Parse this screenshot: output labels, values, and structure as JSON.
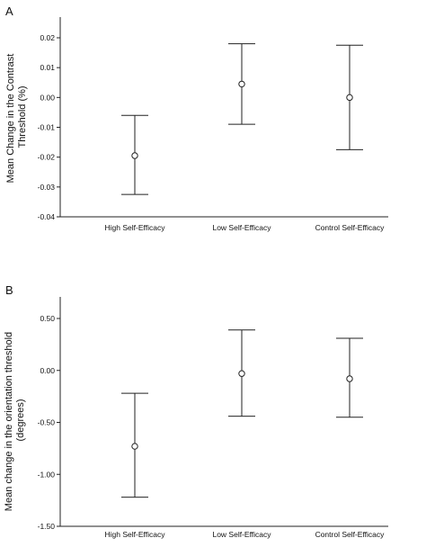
{
  "chart_data": [
    {
      "type": "scatter",
      "panel_label": "A",
      "title": "",
      "xlabel": "",
      "ylabel_lines": [
        "Mean Change in the Contrast",
        "Threshold (%)"
      ],
      "categories": [
        "High Self-Efficacy",
        "Low Self-Efficacy",
        "Control Self-Efficacy"
      ],
      "means": [
        -0.0195,
        0.0045,
        0.0
      ],
      "error_lower": [
        -0.0325,
        -0.009,
        -0.0175
      ],
      "error_upper": [
        -0.006,
        0.018,
        0.0175
      ],
      "ylim": [
        -0.04,
        0.025
      ],
      "yticks": [
        0.02,
        0.01,
        0.0,
        -0.01,
        -0.02,
        -0.03,
        -0.04
      ],
      "ytick_labels": [
        "0.02",
        "0.01",
        "0.00",
        "-0.01",
        "-0.02",
        "-0.03",
        "-0.04"
      ],
      "grid": false,
      "marker": "open-circle with error bars"
    },
    {
      "type": "scatter",
      "panel_label": "B",
      "title": "",
      "xlabel": "",
      "ylabel_lines": [
        "Mean change in the orientation threshold",
        "(degrees)"
      ],
      "categories": [
        "High Self-Efficacy",
        "Low Self-Efficacy",
        "Control Self-Efficacy"
      ],
      "means": [
        -0.73,
        -0.03,
        -0.08
      ],
      "error_lower": [
        -1.22,
        -0.44,
        -0.45
      ],
      "error_upper": [
        -0.22,
        0.39,
        0.31
      ],
      "ylim": [
        -1.5,
        0.65
      ],
      "yticks": [
        0.5,
        0.0,
        -0.5,
        -1.0,
        -1.5
      ],
      "ytick_labels": [
        "0.50",
        "0.00",
        "-0.50",
        "-1.00",
        "-1.50"
      ],
      "grid": false,
      "marker": "open-circle with error bars"
    }
  ]
}
